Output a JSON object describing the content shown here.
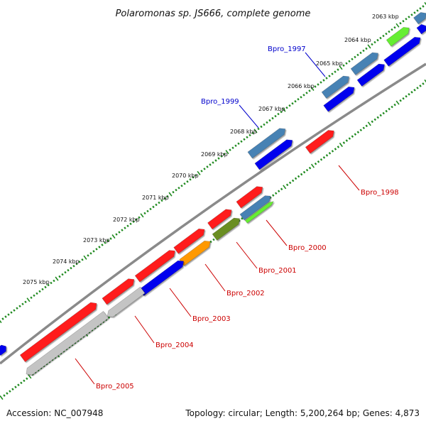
{
  "title": "Polaromonas sp. JS666, complete genome",
  "footer": {
    "accession": "Accession: NC_007948",
    "summary": "Topology: circular; Length: 5,200,264 bp; Genes: 4,873"
  },
  "kbp_ticks": [
    "2063 kbp",
    "2064 kbp",
    "2065 kbp",
    "2066 kbp",
    "2067 kbp",
    "2068 kbp",
    "2069 kbp",
    "2070 kbp",
    "2071 kbp",
    "2072 kbp",
    "2073 kbp",
    "2074 kbp",
    "2075 kbp"
  ],
  "gene_labels": [
    {
      "text": "Bpro_1997",
      "color": "#0000cc"
    },
    {
      "text": "Bpro_1999",
      "color": "#0000cc"
    },
    {
      "text": "Bpro_1998",
      "color": "#cc0000"
    },
    {
      "text": "Bpro_2000",
      "color": "#cc0000"
    },
    {
      "text": "Bpro_2001",
      "color": "#cc0000"
    },
    {
      "text": "Bpro_2002",
      "color": "#cc0000"
    },
    {
      "text": "Bpro_2003",
      "color": "#cc0000"
    },
    {
      "text": "Bpro_2004",
      "color": "#cc0000"
    },
    {
      "text": "Bpro_2005",
      "color": "#cc0000"
    }
  ],
  "colors": {
    "backbone": "#8a8a8a",
    "tick": "#1f8a1f",
    "red": "#ff1a1a",
    "blue": "#0000ee",
    "steelblue": "#4682b4",
    "lime": "#66ee33",
    "olive": "#6b8e23",
    "orange": "#ff9900",
    "gray": "#c4c4c4"
  }
}
